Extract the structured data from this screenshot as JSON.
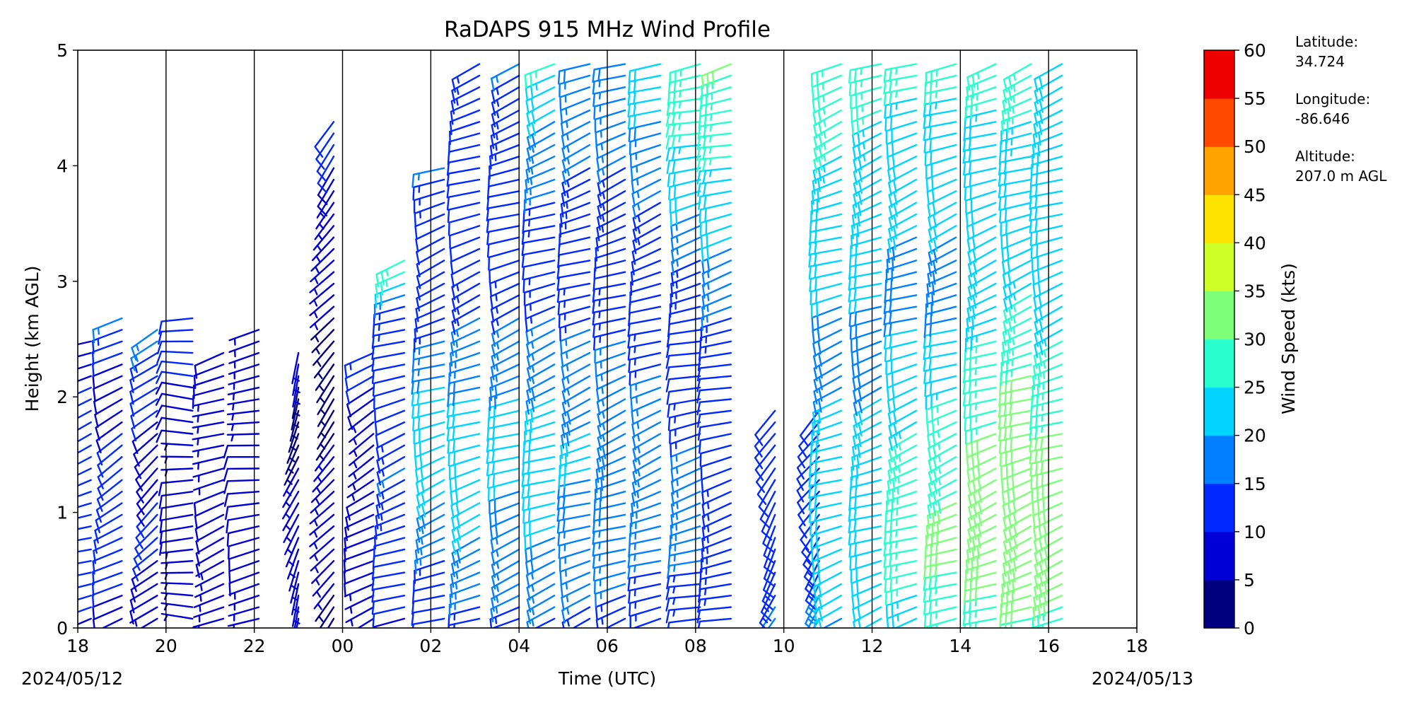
{
  "chart_data": {
    "type": "wind-barb-profile",
    "title": "RaDAPS 915 MHz Wind Profile",
    "xlabel": "Time (UTC)",
    "ylabel": "Height (km AGL)",
    "x_range_hours": [
      18,
      42
    ],
    "ylim": [
      0,
      5
    ],
    "x_ticks": [
      "18",
      "20",
      "22",
      "00",
      "02",
      "04",
      "06",
      "08",
      "10",
      "12",
      "14",
      "16",
      "18"
    ],
    "y_ticks": [
      "0",
      "1",
      "2",
      "3",
      "4",
      "5"
    ],
    "start_date": "2024/05/12",
    "end_date": "2024/05/13",
    "colorbar": {
      "label": "Wind Speed (kts)",
      "ticks": [
        "0",
        "5",
        "10",
        "15",
        "20",
        "25",
        "30",
        "35",
        "40",
        "45",
        "50",
        "55",
        "60"
      ],
      "colors": [
        "#00007f",
        "#0000d4",
        "#0028ff",
        "#0080ff",
        "#00d4ff",
        "#29ffce",
        "#7dff7a",
        "#ceff29",
        "#ffe400",
        "#ffa300",
        "#ff4a00",
        "#ee0000",
        "#7f0000"
      ]
    },
    "station": {
      "lat_label": "Latitude:",
      "lat": "34.724",
      "lon_label": "Longitude:",
      "lon": "-86.646",
      "alt_label": "Altitude:",
      "alt": "207.0 m AGL"
    },
    "grid_x": true,
    "grid_y": false,
    "profiles": [
      {
        "t": 18.3,
        "max_km": 2.5,
        "spd": [
          8,
          10,
          10,
          12,
          12,
          13,
          12,
          10,
          9,
          8
        ],
        "dir": 250
      },
      {
        "t": 19.0,
        "max_km": 2.7,
        "spd": [
          7,
          9,
          10,
          10,
          11,
          10,
          9,
          8,
          10,
          16
        ],
        "dir": 240
      },
      {
        "t": 19.8,
        "max_km": 2.6,
        "spd": [
          6,
          8,
          9,
          10,
          9,
          8,
          9,
          10,
          12,
          16
        ],
        "dir": 230
      },
      {
        "t": 20.6,
        "max_km": 2.7,
        "spd": [
          5,
          6,
          7,
          8,
          8,
          7,
          8,
          9,
          10,
          12
        ],
        "dir": 270
      },
      {
        "t": 21.3,
        "max_km": 2.4,
        "spd": [
          6,
          7,
          7,
          8,
          8,
          7,
          6,
          7,
          8,
          9
        ],
        "dir": 250
      },
      {
        "t": 22.1,
        "max_km": 2.6,
        "spd": [
          6,
          7,
          8,
          9,
          9,
          8,
          7,
          6,
          6,
          7
        ],
        "dir": 260
      },
      {
        "t": 23.0,
        "max_km": 2.4,
        "spd": [
          5,
          6,
          7,
          7,
          6,
          5,
          4,
          3,
          5,
          6
        ],
        "dir": 200
      },
      {
        "t": 23.8,
        "max_km": 4.4,
        "spd": [
          4,
          5,
          6,
          5,
          4,
          4,
          5,
          6,
          8,
          12
        ],
        "dir": 220
      },
      {
        "t": 24.7,
        "max_km": 2.4,
        "spd": [
          6,
          7,
          8,
          9,
          8,
          7,
          6,
          7,
          9,
          13
        ],
        "dir": 240
      },
      {
        "t": 25.4,
        "max_km": 3.2,
        "spd": [
          9,
          10,
          12,
          13,
          14,
          12,
          11,
          12,
          14,
          28
        ],
        "dir": 250
      },
      {
        "t": 26.3,
        "max_km": 4.0,
        "spd": [
          10,
          12,
          16,
          20,
          20,
          18,
          12,
          11,
          12,
          14
        ],
        "dir": 250
      },
      {
        "t": 27.1,
        "max_km": 4.9,
        "spd": [
          12,
          16,
          20,
          20,
          18,
          14,
          12,
          11,
          12,
          13
        ],
        "dir": 250
      },
      {
        "t": 28.0,
        "max_km": 4.9,
        "spd": [
          12,
          16,
          18,
          20,
          18,
          14,
          12,
          12,
          13,
          14
        ],
        "dir": 250
      },
      {
        "t": 28.8,
        "max_km": 4.9,
        "spd": [
          13,
          17,
          20,
          20,
          18,
          14,
          12,
          14,
          18,
          24
        ],
        "dir": 250
      },
      {
        "t": 29.6,
        "max_km": 4.9,
        "spd": [
          12,
          16,
          18,
          19,
          17,
          13,
          12,
          13,
          15,
          18
        ],
        "dir": 250
      },
      {
        "t": 30.4,
        "max_km": 4.9,
        "spd": [
          12,
          15,
          18,
          18,
          16,
          13,
          12,
          13,
          15,
          18
        ],
        "dir": 250
      },
      {
        "t": 31.2,
        "max_km": 4.9,
        "spd": [
          12,
          14,
          16,
          16,
          14,
          12,
          12,
          14,
          18,
          22
        ],
        "dir": 250
      },
      {
        "t": 32.1,
        "max_km": 4.9,
        "spd": [
          12,
          14,
          15,
          14,
          12,
          12,
          14,
          20,
          24,
          27
        ],
        "dir": 255
      },
      {
        "t": 32.8,
        "max_km": 4.9,
        "spd": [
          12,
          13,
          13,
          12,
          11,
          14,
          18,
          22,
          25,
          28
        ],
        "dir": 255
      },
      {
        "t": 33.8,
        "max_km": 1.9,
        "spd": [
          14,
          14,
          13,
          12,
          12,
          12,
          12,
          12,
          12,
          12
        ],
        "dir": 210
      },
      {
        "t": 34.8,
        "max_km": 1.9,
        "spd": [
          15,
          15,
          14,
          13,
          13,
          12,
          12,
          12,
          12,
          12
        ],
        "dir": 215
      },
      {
        "t": 35.3,
        "max_km": 4.9,
        "spd": [
          18,
          20,
          20,
          20,
          18,
          18,
          20,
          22,
          24,
          26
        ],
        "dir": 250
      },
      {
        "t": 36.2,
        "max_km": 4.9,
        "spd": [
          20,
          22,
          22,
          20,
          18,
          18,
          20,
          22,
          23,
          24
        ],
        "dir": 250
      },
      {
        "t": 37.0,
        "max_km": 4.9,
        "spd": [
          22,
          24,
          25,
          24,
          20,
          18,
          18,
          20,
          22,
          24
        ],
        "dir": 250
      },
      {
        "t": 37.9,
        "max_km": 4.9,
        "spd": [
          24,
          28,
          28,
          26,
          22,
          18,
          18,
          20,
          22,
          24
        ],
        "dir": 250
      },
      {
        "t": 38.8,
        "max_km": 4.9,
        "spd": [
          24,
          30,
          30,
          28,
          26,
          22,
          20,
          20,
          22,
          25
        ],
        "dir": 250
      },
      {
        "t": 39.6,
        "max_km": 4.9,
        "spd": [
          26,
          32,
          32,
          30,
          28,
          24,
          22,
          22,
          23,
          24
        ],
        "dir": 250
      },
      {
        "t": 40.3,
        "max_km": 4.9,
        "spd": [
          24,
          32,
          30,
          28,
          26,
          22,
          20,
          20,
          20,
          22
        ],
        "dir": 250
      }
    ]
  }
}
